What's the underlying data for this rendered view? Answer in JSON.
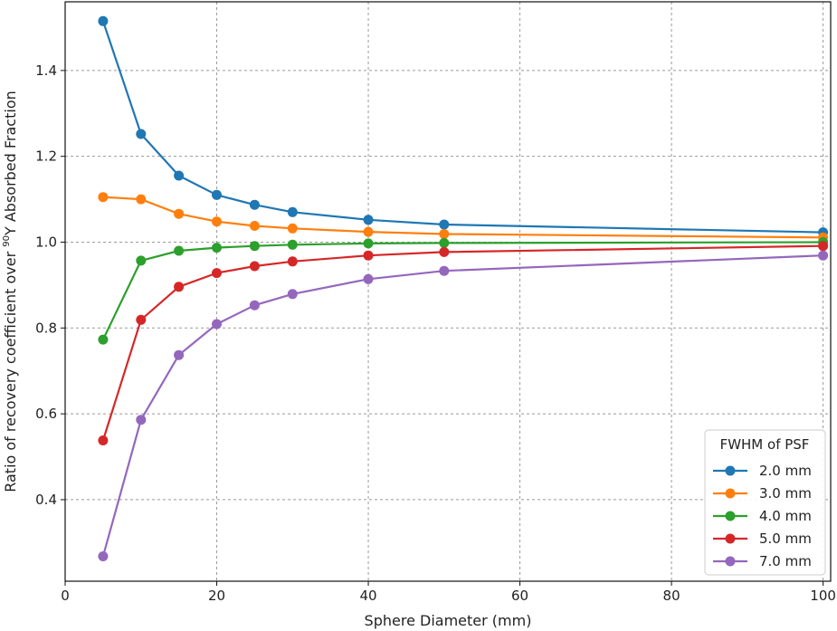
{
  "chart_data": {
    "type": "line",
    "xlabel": "Sphere Diameter (mm)",
    "ylabel_parts": {
      "before": "Ratio of recovery coefficient over ",
      "superscript": "90",
      "after": "Y Absorbed Fraction"
    },
    "xlim": [
      0,
      101
    ],
    "ylim": [
      0.21,
      1.56
    ],
    "xticks": [
      0,
      20,
      40,
      60,
      80,
      100
    ],
    "yticks": [
      0.4,
      0.6,
      0.8,
      1.0,
      1.2,
      1.4
    ],
    "xtick_labels": [
      "0",
      "20",
      "40",
      "60",
      "80",
      "100"
    ],
    "ytick_labels": [
      "0.4",
      "0.6",
      "0.8",
      "1.0",
      "1.2",
      "1.4"
    ],
    "grid": true,
    "legend_title": "FWHM of PSF",
    "legend_position": "lower-right",
    "x": [
      5,
      10,
      15,
      20,
      25,
      30,
      40,
      50,
      100
    ],
    "series": [
      {
        "name": "2.0 mm",
        "color": "#1f77b4",
        "values": [
          1.515,
          1.252,
          1.155,
          1.11,
          1.087,
          1.07,
          1.052,
          1.041,
          1.023
        ]
      },
      {
        "name": "3.0 mm",
        "color": "#ff7f0e",
        "values": [
          1.105,
          1.1,
          1.066,
          1.048,
          1.038,
          1.032,
          1.024,
          1.019,
          1.011
        ]
      },
      {
        "name": "4.0 mm",
        "color": "#2ca02c",
        "values": [
          0.773,
          0.957,
          0.98,
          0.987,
          0.991,
          0.994,
          0.997,
          0.998,
          1.0
        ]
      },
      {
        "name": "5.0 mm",
        "color": "#d62728",
        "values": [
          0.538,
          0.819,
          0.896,
          0.928,
          0.944,
          0.955,
          0.969,
          0.977,
          0.991
        ]
      },
      {
        "name": "7.0 mm",
        "color": "#9467bd",
        "values": [
          0.268,
          0.586,
          0.737,
          0.809,
          0.853,
          0.879,
          0.914,
          0.933,
          0.969
        ]
      }
    ]
  }
}
